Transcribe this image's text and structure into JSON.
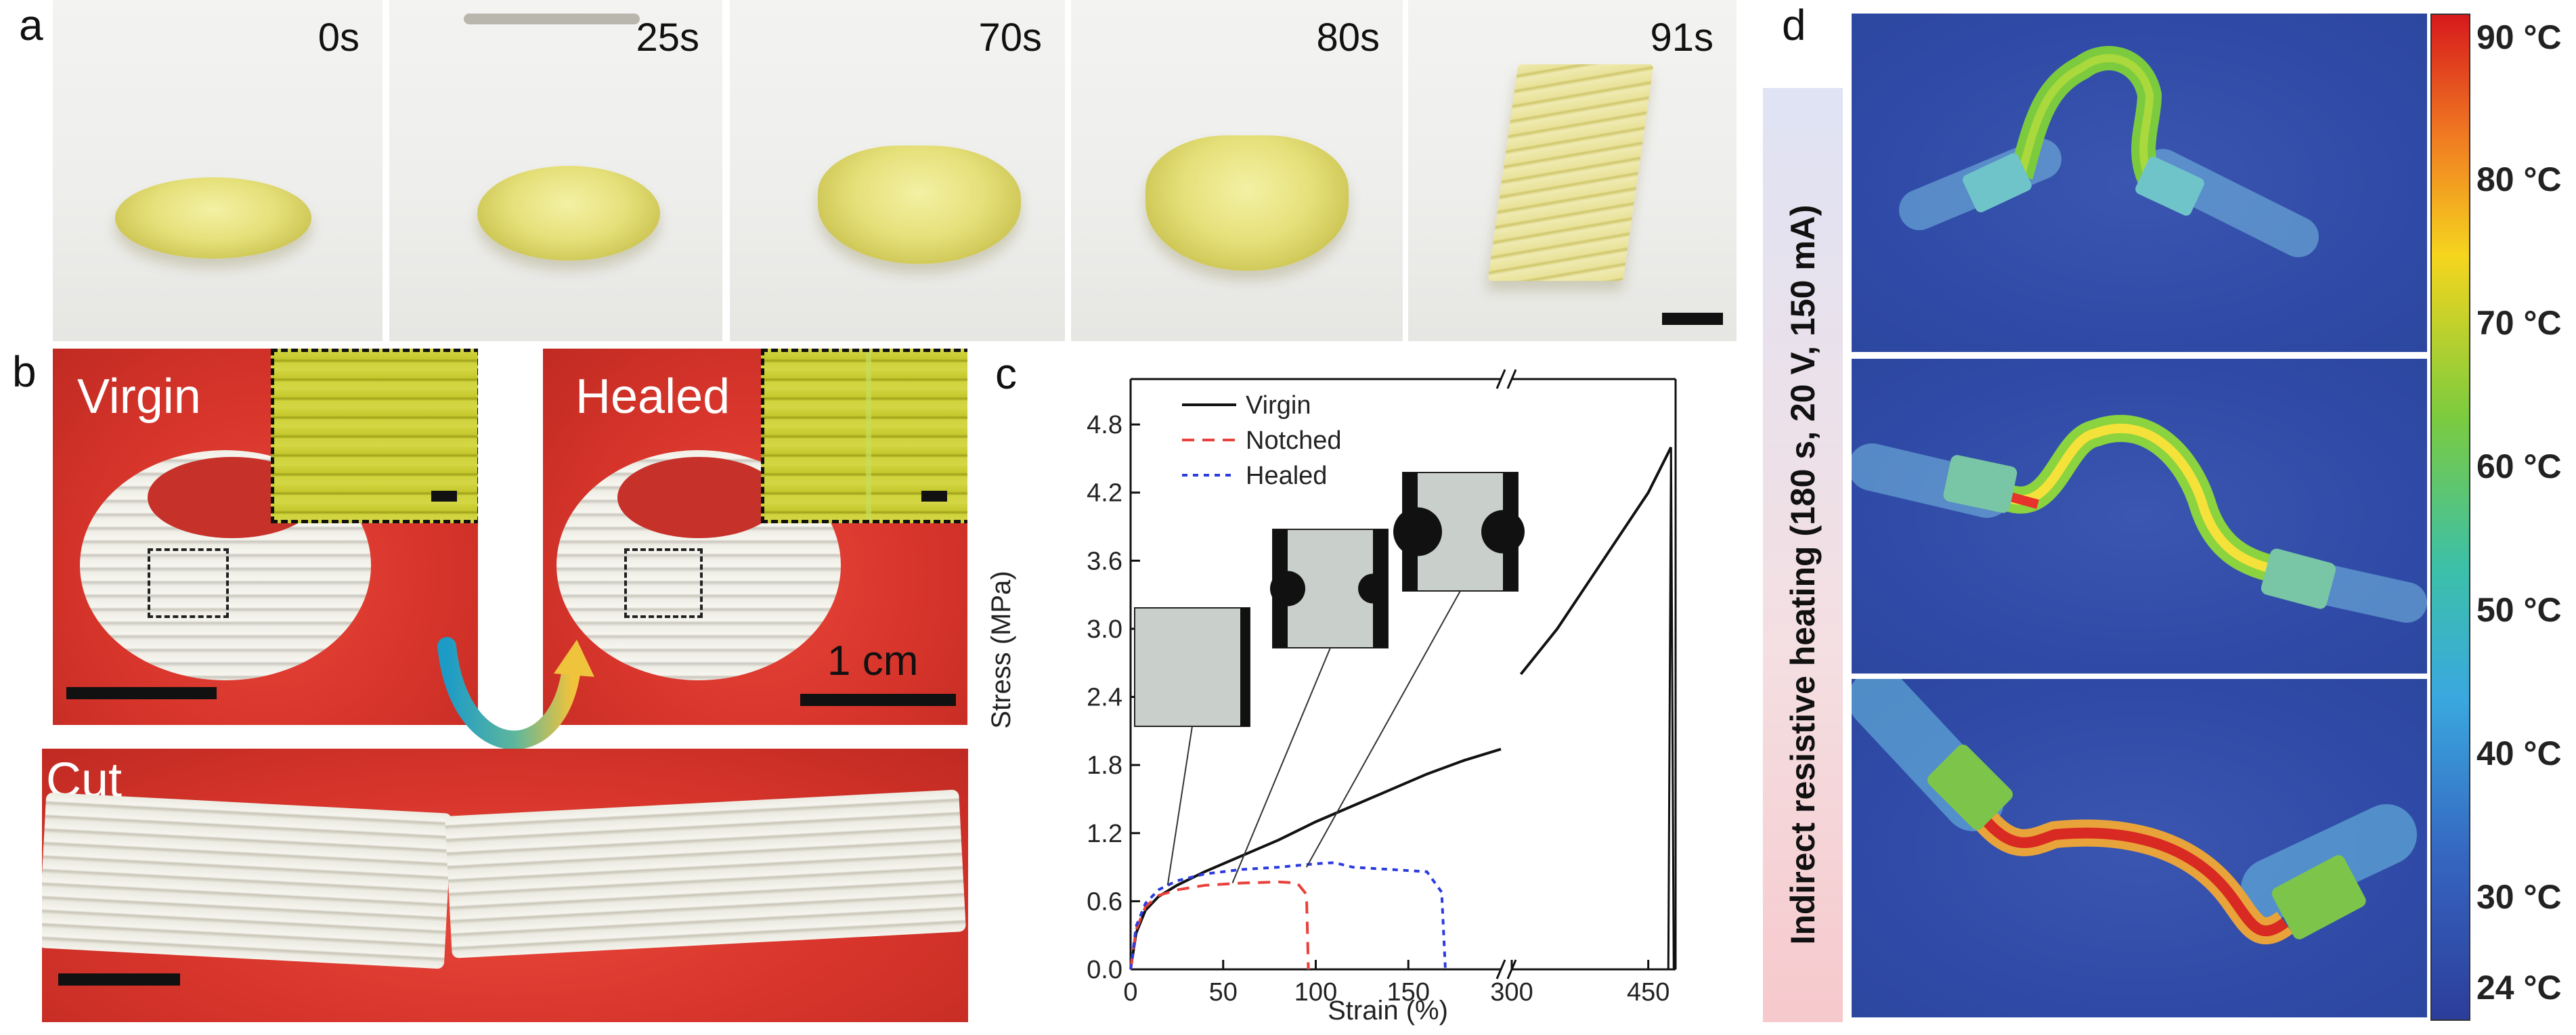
{
  "panel_a": {
    "label": "a",
    "frames": [
      {
        "time": "0s"
      },
      {
        "time": "25s"
      },
      {
        "time": "70s"
      },
      {
        "time": "80s"
      },
      {
        "time": "91s"
      }
    ]
  },
  "panel_b": {
    "label": "b",
    "virgin_label": "Virgin",
    "healed_label": "Healed",
    "scale_text": "1 cm",
    "cut_label": "Cut"
  },
  "panel_c": {
    "label": "c"
  },
  "panel_d": {
    "label": "d",
    "side_label": "Indirect resistive heating (180 s, 20 V, 150 mA)",
    "colorbar_labels": [
      "90 °C",
      "80 °C",
      "70 °C",
      "60 °C",
      "50 °C",
      "40 °C",
      "30 °C",
      "24 °C"
    ]
  },
  "chart_data": {
    "type": "line",
    "xlabel": "Strain (%)",
    "ylabel": "Stress (MPa)",
    "x_ticks": [
      "0",
      "50",
      "100",
      "150",
      "300",
      "450"
    ],
    "y_ticks": [
      "0.0",
      "0.6",
      "1.2",
      "1.8",
      "2.4",
      "3.0",
      "3.6",
      "4.2",
      "4.8"
    ],
    "xlim_segment1": [
      0,
      200
    ],
    "xlim_segment2": [
      300,
      480
    ],
    "ylim": [
      0,
      5.2
    ],
    "axis_break": "//",
    "legend_position": "top-right",
    "series": [
      {
        "name": "Virgin",
        "color": "#111111",
        "style": "solid",
        "x": [
          0,
          3,
          8,
          15,
          25,
          40,
          60,
          80,
          100,
          120,
          140,
          160,
          180,
          200,
          310,
          350,
          400,
          450,
          475
        ],
        "y": [
          0,
          0.32,
          0.52,
          0.64,
          0.74,
          0.86,
          1.0,
          1.14,
          1.3,
          1.44,
          1.58,
          1.72,
          1.84,
          1.94,
          2.6,
          3.0,
          3.6,
          4.2,
          4.6
        ]
      },
      {
        "name": "Notched",
        "color": "#e8403a",
        "style": "dashed",
        "x": [
          0,
          3,
          8,
          15,
          25,
          40,
          60,
          80,
          90,
          95,
          96
        ],
        "y": [
          0,
          0.35,
          0.55,
          0.65,
          0.7,
          0.74,
          0.76,
          0.77,
          0.76,
          0.66,
          0.0
        ]
      },
      {
        "name": "Healed",
        "color": "#2b3be0",
        "style": "dotted",
        "x": [
          0,
          3,
          8,
          15,
          25,
          40,
          60,
          80,
          100,
          110,
          120,
          140,
          160,
          168,
          170
        ],
        "y": [
          0,
          0.38,
          0.58,
          0.7,
          0.78,
          0.84,
          0.88,
          0.9,
          0.93,
          0.94,
          0.9,
          0.88,
          0.86,
          0.68,
          0.0
        ]
      }
    ]
  }
}
